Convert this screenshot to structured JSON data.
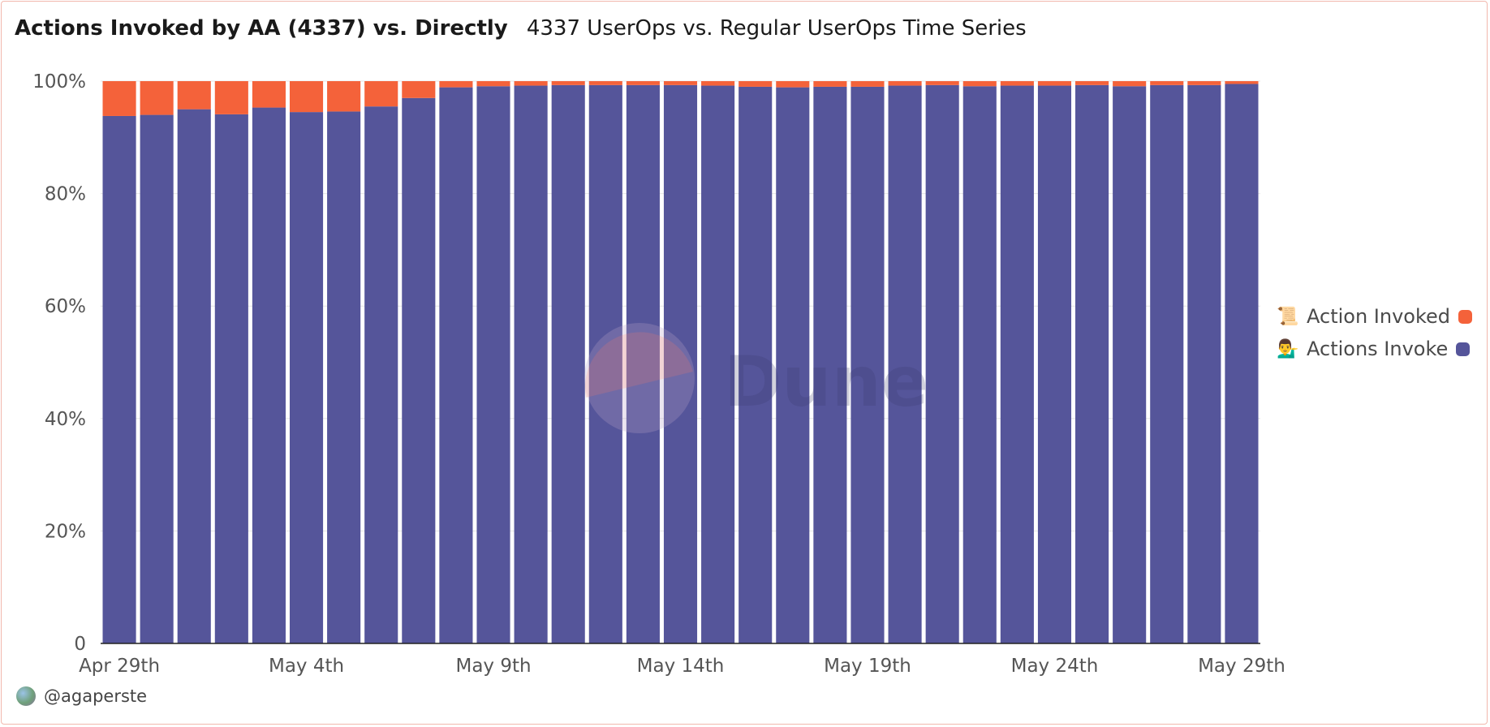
{
  "header": {
    "title": "Actions Invoked by AA (4337) vs. Directly",
    "subtitle": "4337 UserOps vs. Regular UserOps Time Series"
  },
  "watermark": {
    "text": "Dune"
  },
  "author": {
    "handle": "@agaperste"
  },
  "colors": {
    "action_invoked": "#f4623a",
    "actions_invoke": "#55559a"
  },
  "legend": [
    {
      "emoji": "📜",
      "label": "Action Invoked",
      "color": "#f4623a"
    },
    {
      "emoji": "💁‍♂️",
      "label": "Actions Invoke",
      "color": "#55559a"
    }
  ],
  "chart_data": {
    "type": "bar",
    "stacked": true,
    "normalized": true,
    "x_tick_labels": [
      "Apr 29th",
      "May 4th",
      "May 9th",
      "May 14th",
      "May 19th",
      "May 24th",
      "May 29th"
    ],
    "y_tick_labels": [
      "0",
      "20%",
      "40%",
      "60%",
      "80%",
      "100%"
    ],
    "ylim": [
      0,
      100
    ],
    "grid": true,
    "legend_position": "right",
    "categories": [
      "Apr 29",
      "Apr 30",
      "May 1",
      "May 2",
      "May 3",
      "May 4",
      "May 5",
      "May 6",
      "May 7",
      "May 8",
      "May 9",
      "May 10",
      "May 11",
      "May 12",
      "May 13",
      "May 14",
      "May 15",
      "May 16",
      "May 17",
      "May 18",
      "May 19",
      "May 20",
      "May 21",
      "May 22",
      "May 23",
      "May 24",
      "May 25",
      "May 26",
      "May 27",
      "May 28",
      "May 29"
    ],
    "series": [
      {
        "name": "Actions Invoke",
        "values": [
          93.8,
          94.0,
          95.0,
          94.1,
          95.3,
          94.5,
          94.6,
          95.5,
          97.0,
          98.9,
          99.1,
          99.2,
          99.3,
          99.3,
          99.3,
          99.3,
          99.2,
          99.0,
          98.9,
          99.0,
          99.0,
          99.2,
          99.3,
          99.1,
          99.2,
          99.2,
          99.3,
          99.1,
          99.3,
          99.3,
          99.5
        ]
      },
      {
        "name": "Action Invoked",
        "values": [
          6.2,
          6.0,
          5.0,
          5.9,
          4.7,
          5.5,
          5.4,
          4.5,
          3.0,
          1.1,
          0.9,
          0.8,
          0.7,
          0.7,
          0.7,
          0.7,
          0.8,
          1.0,
          1.1,
          1.0,
          1.0,
          0.8,
          0.7,
          0.9,
          0.8,
          0.8,
          0.7,
          0.9,
          0.7,
          0.7,
          0.5
        ]
      }
    ]
  }
}
